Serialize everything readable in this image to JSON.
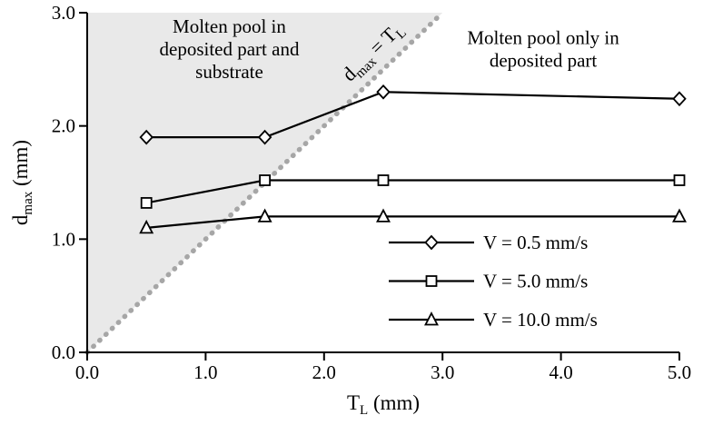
{
  "figure": {
    "background": "#ffffff",
    "axis_color": "#000000",
    "text_color": "#000000"
  },
  "chart_data": {
    "type": "line",
    "title": "",
    "xlabel": "T_L (mm)",
    "ylabel": "d_max (mm)",
    "xlabel_parts": [
      {
        "t": "T"
      },
      {
        "t": "L",
        "sub": true
      },
      {
        "t": " (mm)"
      }
    ],
    "ylabel_parts": [
      {
        "t": "d"
      },
      {
        "t": "max",
        "sub": true
      },
      {
        "t": " (mm)"
      }
    ],
    "xlim": [
      0.0,
      5.0
    ],
    "ylim": [
      0.0,
      3.0
    ],
    "xticks": [
      0.0,
      1.0,
      2.0,
      3.0,
      4.0,
      5.0
    ],
    "yticks": [
      0.0,
      1.0,
      2.0,
      3.0
    ],
    "tick_decimals": 1,
    "grid": false,
    "legend_position": "center-right",
    "series": [
      {
        "name": "V = 0.5 mm/s",
        "marker": "diamond",
        "color": "#000000",
        "x": [
          0.5,
          1.5,
          2.5,
          5.0
        ],
        "y": [
          1.9,
          1.9,
          2.3,
          2.24
        ]
      },
      {
        "name": "V = 5.0 mm/s",
        "marker": "square",
        "color": "#000000",
        "x": [
          0.5,
          1.5,
          2.5,
          5.0
        ],
        "y": [
          1.32,
          1.52,
          1.52,
          1.52
        ]
      },
      {
        "name": "V = 10.0 mm/s",
        "marker": "triangle",
        "color": "#000000",
        "x": [
          0.5,
          1.5,
          2.5,
          5.0
        ],
        "y": [
          1.1,
          1.2,
          1.2,
          1.2
        ]
      }
    ],
    "reference_line": {
      "label": "d_max = T_L",
      "label_parts": [
        {
          "t": "d"
        },
        {
          "t": "max",
          "sub": true
        },
        {
          "t": " = T"
        },
        {
          "t": "L",
          "sub": true
        }
      ],
      "from": [
        0.0,
        0.0
      ],
      "to": [
        3.0,
        3.0
      ],
      "style": "dotted",
      "color": "#a6a6a6"
    },
    "shaded_region": {
      "vertices": [
        [
          0.0,
          0.0
        ],
        [
          0.0,
          3.0
        ],
        [
          3.0,
          3.0
        ]
      ],
      "color": "#e9e9e9",
      "meaning": "Molten pool in deposited part and substrate"
    },
    "annotations": [
      {
        "id": "annotation-molten-pool-substrate",
        "lines": [
          "Molten pool in",
          "deposited part and",
          "substrate"
        ],
        "x": 1.2,
        "y": 2.68
      },
      {
        "id": "annotation-molten-pool-deposited",
        "lines": [
          "Molten pool only in",
          "deposited part"
        ],
        "x": 3.85,
        "y": 2.68
      }
    ]
  }
}
